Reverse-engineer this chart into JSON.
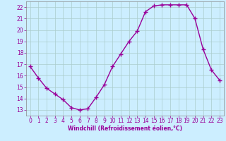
{
  "x": [
    0,
    1,
    2,
    3,
    4,
    5,
    6,
    7,
    8,
    9,
    10,
    11,
    12,
    13,
    14,
    15,
    16,
    17,
    18,
    19,
    20,
    21,
    22,
    23
  ],
  "y": [
    16.8,
    15.8,
    14.9,
    14.4,
    13.9,
    13.2,
    13.0,
    13.1,
    14.1,
    15.2,
    16.8,
    17.9,
    19.0,
    19.9,
    21.6,
    22.1,
    22.2,
    22.2,
    22.2,
    22.2,
    21.0,
    18.3,
    16.5,
    15.6
  ],
  "line_color": "#990099",
  "marker": "+",
  "marker_size": 4,
  "marker_linewidth": 1.0,
  "linewidth": 1.0,
  "background_color": "#cceeff",
  "grid_color": "#aacccc",
  "xlabel": "Windchill (Refroidissement éolien,°C)",
  "xlabel_color": "#990099",
  "xlabel_fontsize": 5.5,
  "xlabel_fontweight": "bold",
  "xlim": [
    -0.5,
    23.5
  ],
  "ylim": [
    12.5,
    22.5
  ],
  "yticks": [
    13,
    14,
    15,
    16,
    17,
    18,
    19,
    20,
    21,
    22
  ],
  "xticks": [
    0,
    1,
    2,
    3,
    4,
    5,
    6,
    7,
    8,
    9,
    10,
    11,
    12,
    13,
    14,
    15,
    16,
    17,
    18,
    19,
    20,
    21,
    22,
    23
  ],
  "tick_labelsize": 5.5,
  "spine_color": "#888888"
}
